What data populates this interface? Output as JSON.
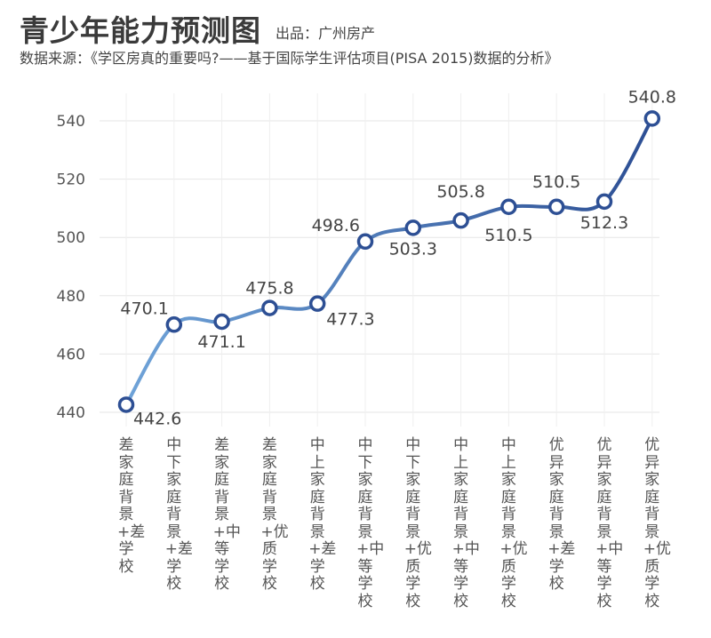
{
  "header": {
    "title": "青少年能力预测图",
    "producer": "出品：广州房产",
    "source": "数据来源：《学区房真的重要吗?——基于国际学生评估项目(PISA 2015)数据的分析》"
  },
  "chart_data": {
    "type": "line",
    "title": "青少年能力预测图",
    "categories": [
      "差家庭背景+差学校",
      "中下家庭背景+差学校",
      "差家庭背景+中等学校",
      "差家庭背景+优质学校",
      "中上家庭背景+差学校",
      "中下家庭背景+中等学校",
      "中下家庭背景+优质学校",
      "中上家庭背景+中等学校",
      "中上家庭背景+优质学校",
      "优异家庭背景+差学校",
      "优异家庭背景+中等学校",
      "优异家庭背景+优质学校"
    ],
    "values": [
      442.6,
      470.1,
      471.1,
      475.8,
      477.3,
      498.6,
      503.3,
      505.8,
      510.5,
      510.5,
      512.3,
      540.8
    ],
    "data_labels": [
      "442.6",
      "470.1",
      "471.1",
      "475.8",
      "477.3",
      "498.6",
      "503.3",
      "505.8",
      "510.5",
      "510.5",
      "512.3",
      "540.8"
    ],
    "yticks": [
      "440",
      "460",
      "480",
      "500",
      "520",
      "540"
    ],
    "ylim": [
      440,
      545
    ],
    "grid": true,
    "smooth": true,
    "colors": {
      "line_start": "#6fa3d8",
      "line_end": "#2d4f94",
      "marker_fill": "#ffffff",
      "marker_stroke": "#2d4f94",
      "label": "#444444"
    }
  }
}
